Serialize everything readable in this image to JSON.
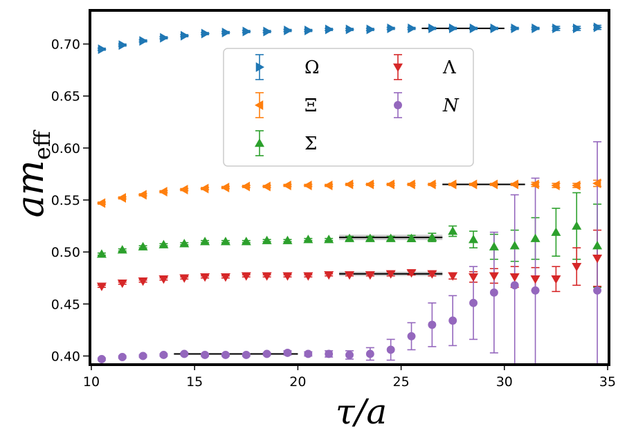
{
  "chart_data": {
    "type": "scatter",
    "xlabel": "τ/a",
    "ylabel_base": "am",
    "ylabel_sub": "eff",
    "xlim": [
      10,
      35
    ],
    "ylim": [
      0.393,
      0.731
    ],
    "xticks": [
      10,
      15,
      20,
      25,
      30,
      35
    ],
    "yticks": [
      0.4,
      0.45,
      0.5,
      0.55,
      0.6,
      0.65,
      0.7
    ],
    "ytick_labels": [
      "0.40",
      "0.45",
      "0.50",
      "0.55",
      "0.60",
      "0.65",
      "0.70"
    ],
    "grid": false,
    "legend_position": "upper-center",
    "series": [
      {
        "name": "Ω",
        "color": "#1f77b4",
        "marker": "triangle-right",
        "x": [
          10.5,
          11.5,
          12.5,
          13.5,
          14.5,
          15.5,
          16.5,
          17.5,
          18.5,
          19.5,
          20.5,
          21.5,
          22.5,
          23.5,
          24.5,
          25.5,
          26.5,
          27.5,
          28.5,
          29.5,
          30.5,
          31.5,
          32.5,
          33.5,
          34.5
        ],
        "y": [
          0.695,
          0.699,
          0.703,
          0.706,
          0.708,
          0.71,
          0.711,
          0.712,
          0.712,
          0.713,
          0.713,
          0.714,
          0.714,
          0.714,
          0.715,
          0.715,
          0.715,
          0.715,
          0.715,
          0.715,
          0.715,
          0.715,
          0.715,
          0.715,
          0.716
        ],
        "err": [
          0.001,
          0.001,
          0.001,
          0.001,
          0.001,
          0.001,
          0.001,
          0.001,
          0.001,
          0.001,
          0.001,
          0.001,
          0.001,
          0.001,
          0.001,
          0.001,
          0.001,
          0.001,
          0.001,
          0.001,
          0.001,
          0.001,
          0.002,
          0.002,
          0.002
        ],
        "fit": {
          "x": [
            26,
            30
          ],
          "y": 0.715,
          "band": 0.0008
        }
      },
      {
        "name": "Ξ",
        "color": "#ff7f0e",
        "marker": "triangle-left",
        "x": [
          10.5,
          11.5,
          12.5,
          13.5,
          14.5,
          15.5,
          16.5,
          17.5,
          18.5,
          19.5,
          20.5,
          21.5,
          22.5,
          23.5,
          24.5,
          25.5,
          26.5,
          27.5,
          28.5,
          29.5,
          30.5,
          31.5,
          32.5,
          33.5,
          34.5
        ],
        "y": [
          0.547,
          0.552,
          0.555,
          0.558,
          0.56,
          0.561,
          0.562,
          0.563,
          0.563,
          0.564,
          0.564,
          0.564,
          0.565,
          0.565,
          0.565,
          0.565,
          0.565,
          0.565,
          0.565,
          0.565,
          0.565,
          0.565,
          0.564,
          0.564,
          0.566
        ],
        "err": [
          0.001,
          0.001,
          0.001,
          0.001,
          0.001,
          0.001,
          0.001,
          0.001,
          0.001,
          0.001,
          0.001,
          0.001,
          0.001,
          0.001,
          0.001,
          0.001,
          0.001,
          0.001,
          0.001,
          0.001,
          0.001,
          0.002,
          0.002,
          0.002,
          0.003
        ],
        "fit": {
          "x": [
            27,
            31
          ],
          "y": 0.565,
          "band": 0.0008
        }
      },
      {
        "name": "Σ",
        "color": "#2ca02c",
        "marker": "triangle-up",
        "x": [
          10.5,
          11.5,
          12.5,
          13.5,
          14.5,
          15.5,
          16.5,
          17.5,
          18.5,
          19.5,
          20.5,
          21.5,
          22.5,
          23.5,
          24.5,
          25.5,
          26.5,
          27.5,
          28.5,
          29.5,
          30.5,
          31.5,
          32.5,
          33.5,
          34.5
        ],
        "y": [
          0.498,
          0.502,
          0.505,
          0.507,
          0.508,
          0.51,
          0.51,
          0.51,
          0.511,
          0.511,
          0.512,
          0.512,
          0.513,
          0.513,
          0.513,
          0.513,
          0.514,
          0.52,
          0.512,
          0.505,
          0.506,
          0.513,
          0.519,
          0.525,
          0.506
        ],
        "err": [
          0.001,
          0.001,
          0.001,
          0.001,
          0.001,
          0.001,
          0.001,
          0.001,
          0.001,
          0.001,
          0.001,
          0.001,
          0.002,
          0.002,
          0.002,
          0.003,
          0.004,
          0.005,
          0.008,
          0.012,
          0.015,
          0.02,
          0.023,
          0.032,
          0.04
        ],
        "fit": {
          "x": [
            22,
            27
          ],
          "y": 0.514,
          "band": 0.0025
        }
      },
      {
        "name": "Λ",
        "color": "#d62728",
        "marker": "triangle-down",
        "x": [
          10.5,
          11.5,
          12.5,
          13.5,
          14.5,
          15.5,
          16.5,
          17.5,
          18.5,
          19.5,
          20.5,
          21.5,
          22.5,
          23.5,
          24.5,
          25.5,
          26.5,
          27.5,
          28.5,
          29.5,
          30.5,
          31.5,
          32.5,
          33.5,
          34.5
        ],
        "y": [
          0.467,
          0.47,
          0.472,
          0.474,
          0.475,
          0.476,
          0.476,
          0.477,
          0.477,
          0.477,
          0.477,
          0.478,
          0.478,
          0.478,
          0.479,
          0.48,
          0.479,
          0.477,
          0.476,
          0.477,
          0.476,
          0.474,
          0.474,
          0.486,
          0.494
        ],
        "err": [
          0.001,
          0.001,
          0.001,
          0.001,
          0.001,
          0.001,
          0.001,
          0.001,
          0.001,
          0.001,
          0.001,
          0.001,
          0.001,
          0.001,
          0.002,
          0.002,
          0.002,
          0.003,
          0.005,
          0.007,
          0.01,
          0.011,
          0.012,
          0.018,
          0.027
        ],
        "fit": {
          "x": [
            22,
            27
          ],
          "y": 0.479,
          "band": 0.002
        }
      },
      {
        "name": "N",
        "color": "#9467bd",
        "marker": "circle",
        "x": [
          10.5,
          11.5,
          12.5,
          13.5,
          14.5,
          15.5,
          16.5,
          17.5,
          18.5,
          19.5,
          20.5,
          21.5,
          22.5,
          23.5,
          24.5,
          25.5,
          26.5,
          27.5,
          28.5,
          29.5,
          30.5,
          31.5,
          32.5,
          33.5,
          34.5
        ],
        "y": [
          0.397,
          0.399,
          0.4,
          0.401,
          0.402,
          0.401,
          0.401,
          0.401,
          0.402,
          0.403,
          0.402,
          0.402,
          0.401,
          0.402,
          0.406,
          0.419,
          0.43,
          0.434,
          0.451,
          0.461,
          0.468,
          0.463,
          null,
          null,
          0.463
        ],
        "err": [
          0.001,
          0.001,
          0.001,
          0.001,
          0.001,
          0.001,
          0.001,
          0.001,
          0.001,
          0.002,
          0.002,
          0.003,
          0.004,
          0.006,
          0.01,
          0.013,
          0.021,
          0.024,
          0.035,
          0.058,
          0.087,
          0.108,
          null,
          null,
          0.143
        ],
        "fit": {
          "x": [
            14,
            20
          ],
          "y": 0.402,
          "band": 0.0008
        }
      }
    ]
  }
}
